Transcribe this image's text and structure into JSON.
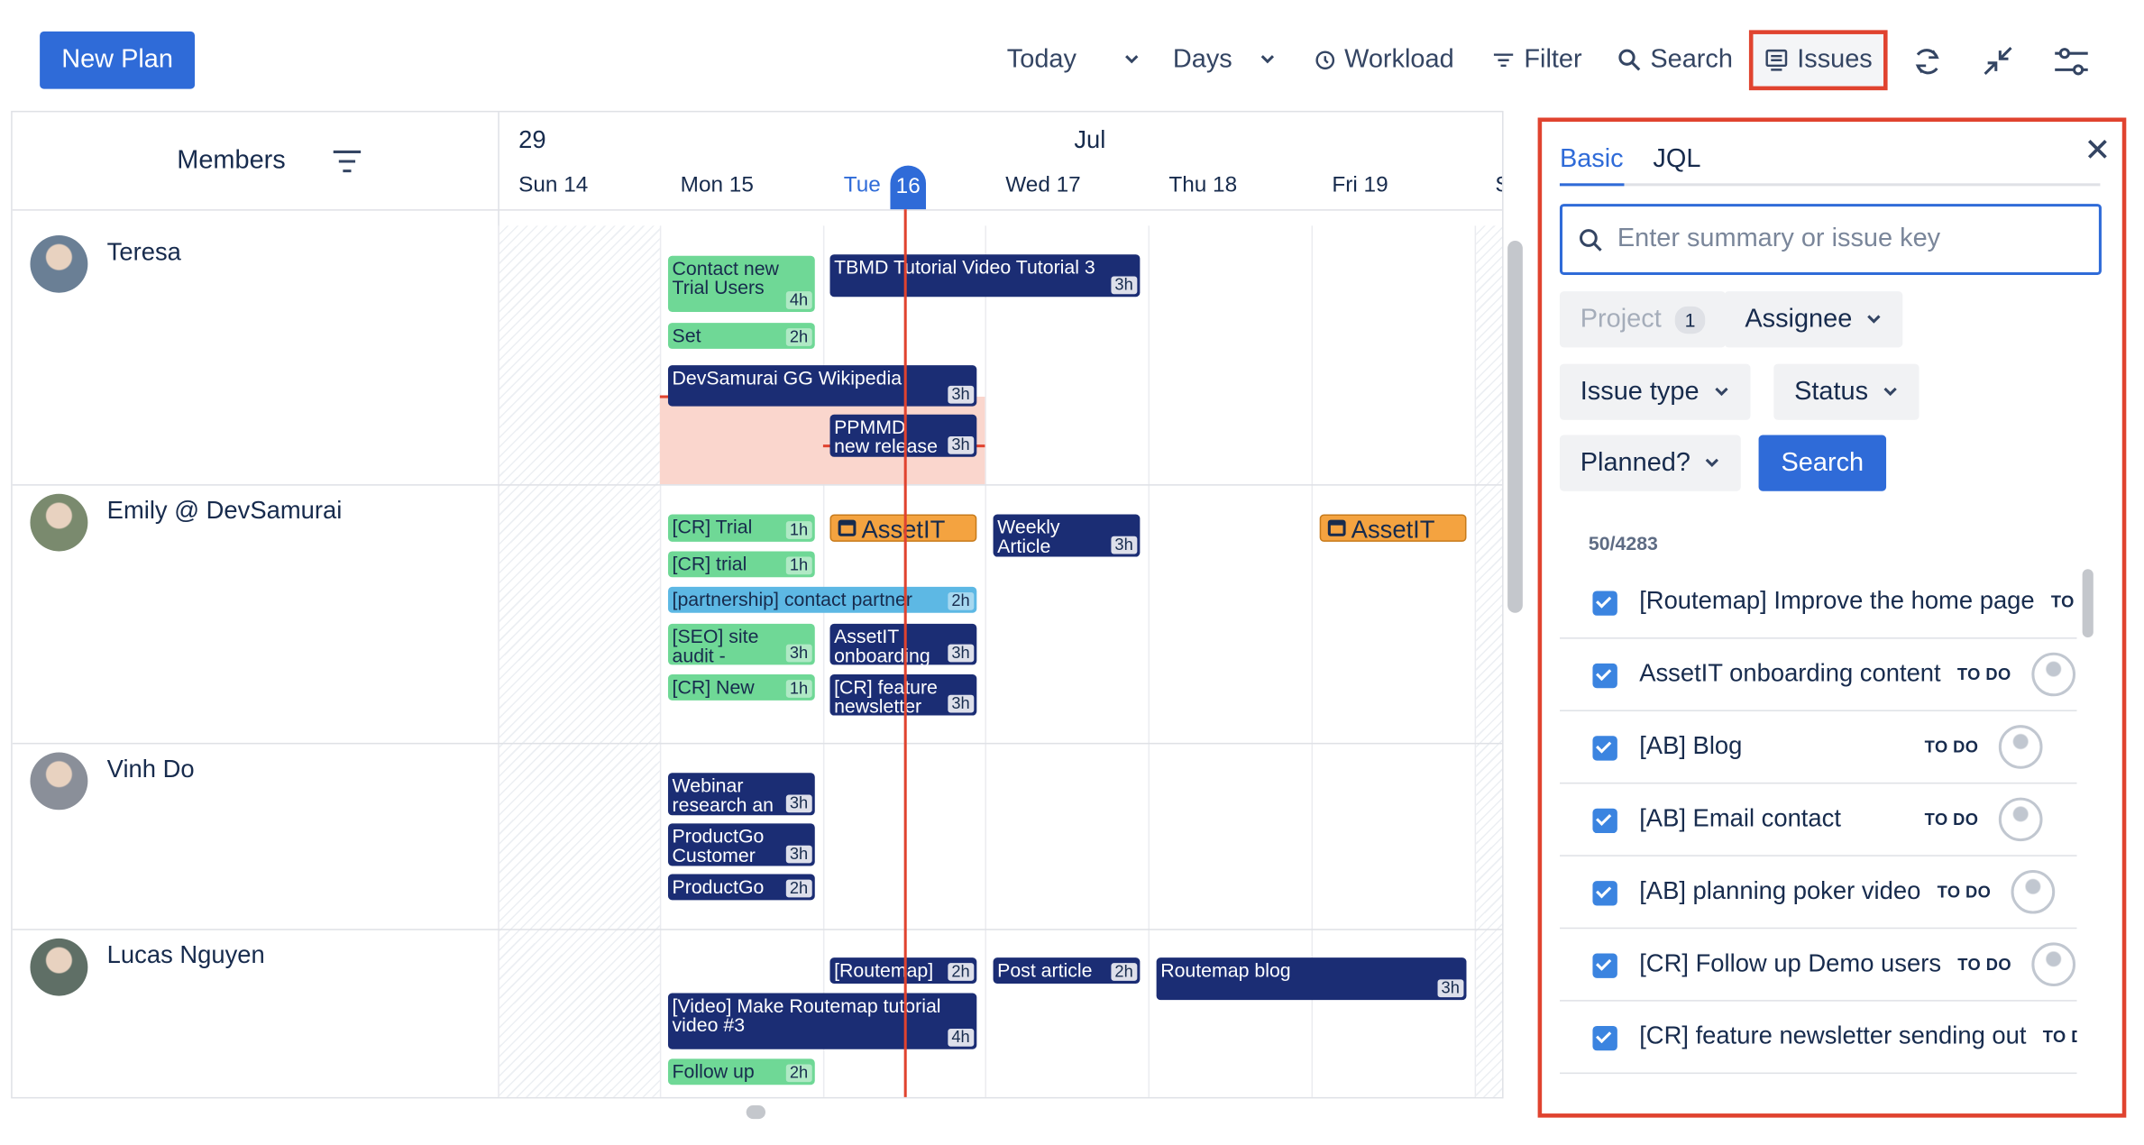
{
  "toolbar": {
    "new_plan": "New Plan",
    "today": "Today",
    "days": "Days",
    "workload": "Workload",
    "filter": "Filter",
    "search": "Search",
    "issues": "Issues"
  },
  "calendar": {
    "members_header": "Members",
    "week": "29",
    "month": "Jul",
    "days": [
      "Sun 14",
      "Mon 15",
      "Tue",
      "Wed 17",
      "Thu 18",
      "Fri 19",
      "S"
    ],
    "today_number": "16",
    "members": [
      {
        "name": "Teresa",
        "events": [
          {
            "title": "Contact new Trial Users",
            "duration": "4h",
            "color": "#6fd896"
          },
          {
            "title": "TBMD Tutorial Video Tutorial 3",
            "duration": "3h",
            "color": "#1b2d74"
          },
          {
            "title": "Set",
            "duration": "2h",
            "color": "#6fd896"
          },
          {
            "title": "DevSamurai GG Wikipedia",
            "duration": "3h",
            "color": "#1b2d74"
          },
          {
            "title": "PPMMD new release",
            "duration": "3h",
            "color": "#1b2d74"
          }
        ]
      },
      {
        "name": "Emily @ DevSamurai",
        "events": [
          {
            "title": "[CR] Trial",
            "duration": "1h",
            "color": "#6fd896"
          },
          {
            "title": "AssetIT",
            "color": "#f4a340"
          },
          {
            "title": "Weekly Article",
            "duration": "3h",
            "color": "#1b2d74"
          },
          {
            "title": "AssetIT",
            "color": "#f4a340"
          },
          {
            "title": "[CR] trial",
            "duration": "1h",
            "color": "#6fd896"
          },
          {
            "title": "[partnership] contact partner",
            "duration": "2h",
            "color": "#5db8e4"
          },
          {
            "title": "[SEO] site audit -",
            "duration": "3h",
            "color": "#6fd896"
          },
          {
            "title": "AssetIT onboarding",
            "duration": "3h",
            "color": "#1b2d74"
          },
          {
            "title": "[CR] New",
            "duration": "1h",
            "color": "#6fd896"
          },
          {
            "title": "[CR] feature newsletter",
            "duration": "3h",
            "color": "#1b2d74"
          }
        ]
      },
      {
        "name": "Vinh Do",
        "events": [
          {
            "title": "Webinar research an",
            "duration": "3h",
            "color": "#1b2d74"
          },
          {
            "title": "ProductGo Customer",
            "duration": "3h",
            "color": "#1b2d74"
          },
          {
            "title": "ProductGo",
            "duration": "2h",
            "color": "#1b2d74"
          }
        ]
      },
      {
        "name": "Lucas Nguyen",
        "events": [
          {
            "title": "[Routemap]",
            "duration": "2h",
            "color": "#1b2d74"
          },
          {
            "title": "Post article",
            "duration": "2h",
            "color": "#1b2d74"
          },
          {
            "title": "Routemap blog",
            "duration": "3h",
            "color": "#1b2d74"
          },
          {
            "title": "[Video] Make Routemap tutorial video #3",
            "duration": "4h",
            "color": "#1b2d74"
          },
          {
            "title": "Follow up",
            "duration": "2h",
            "color": "#6fd896"
          }
        ]
      }
    ]
  },
  "issues_panel": {
    "tabs": [
      "Basic",
      "JQL"
    ],
    "search_placeholder": "Enter summary or issue key",
    "filters": {
      "project": "Project",
      "project_count": "1",
      "assignee": "Assignee",
      "issue_type": "Issue type",
      "status": "Status",
      "planned": "Planned?"
    },
    "search_button": "Search",
    "count": "50/4283",
    "issues": [
      {
        "title": "[Routemap] Improve the home page",
        "status": "TO DO"
      },
      {
        "title": "AssetIT onboarding content",
        "status": "TO DO"
      },
      {
        "title": "[AB] Blog",
        "status": "TO DO"
      },
      {
        "title": "[AB] Email contact",
        "status": "TO DO"
      },
      {
        "title": "[AB] planning poker video",
        "status": "TO DO"
      },
      {
        "title": "[CR] Follow up Demo users",
        "status": "TO DO"
      },
      {
        "title": "[CR] feature newsletter sending out",
        "status": "TO DO"
      }
    ]
  }
}
